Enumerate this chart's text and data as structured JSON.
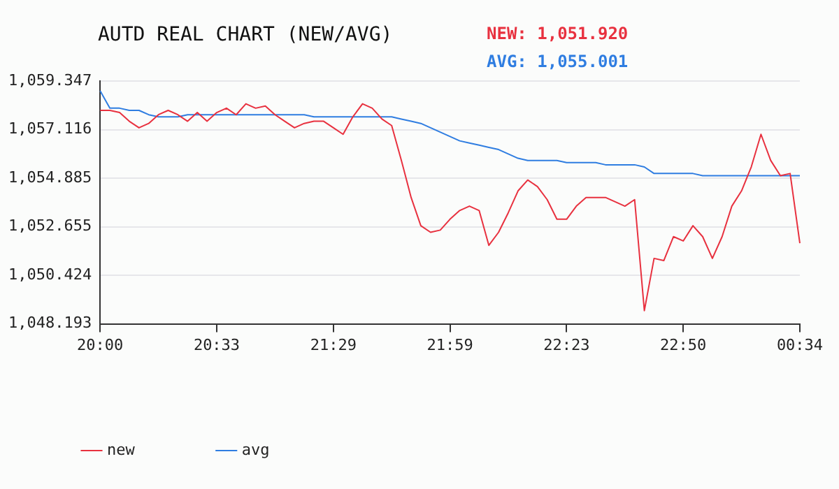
{
  "chart_data": {
    "type": "line",
    "title": "AUTD REAL CHART (NEW/AVG)",
    "annotations": [
      "NEW: 1,051.920",
      "AVG: 1,055.001"
    ],
    "categories": [
      "20:00",
      null,
      null,
      null,
      null,
      null,
      null,
      null,
      null,
      null,
      null,
      null,
      "20:33",
      null,
      null,
      null,
      null,
      null,
      null,
      null,
      null,
      null,
      null,
      null,
      "21:29",
      null,
      null,
      null,
      null,
      null,
      null,
      null,
      null,
      null,
      null,
      null,
      "21:59",
      null,
      null,
      null,
      null,
      null,
      null,
      null,
      null,
      null,
      null,
      null,
      "22:23",
      null,
      null,
      null,
      null,
      null,
      null,
      null,
      null,
      null,
      null,
      null,
      "22:50",
      null,
      null,
      null,
      null,
      null,
      null,
      null,
      null,
      null,
      null,
      null,
      "00:34"
    ],
    "series": [
      {
        "name": "new",
        "color": "#e8313f",
        "values": [
          1058.0,
          1058.0,
          1057.9,
          1057.5,
          1057.2,
          1057.4,
          1057.8,
          1058.0,
          1057.8,
          1057.5,
          1057.9,
          1057.5,
          1057.9,
          1058.1,
          1057.8,
          1058.3,
          1058.1,
          1058.2,
          1057.8,
          1057.5,
          1057.2,
          1057.4,
          1057.5,
          1057.5,
          1057.2,
          1056.9,
          1057.7,
          1058.3,
          1058.1,
          1057.6,
          1057.3,
          1055.7,
          1054.0,
          1052.7,
          1052.4,
          1052.5,
          1053.0,
          1053.4,
          1053.6,
          1053.4,
          1051.8,
          1052.4,
          1053.3,
          1054.3,
          1054.8,
          1054.5,
          1053.9,
          1053.0,
          1053.0,
          1053.6,
          1054.0,
          1054.0,
          1054.0,
          1053.8,
          1053.6,
          1053.9,
          1048.8,
          1051.2,
          1051.1,
          1052.2,
          1052.0,
          1052.7,
          1052.2,
          1051.2,
          1052.2,
          1053.6,
          1054.3,
          1055.4,
          1056.9,
          1055.7,
          1055.0,
          1055.1,
          1051.9
        ]
      },
      {
        "name": "avg",
        "color": "#2f7de1",
        "values": [
          1058.9,
          1058.1,
          1058.1,
          1058.0,
          1058.0,
          1057.8,
          1057.7,
          1057.7,
          1057.7,
          1057.8,
          1057.8,
          1057.8,
          1057.8,
          1057.8,
          1057.8,
          1057.8,
          1057.8,
          1057.8,
          1057.8,
          1057.8,
          1057.8,
          1057.8,
          1057.7,
          1057.7,
          1057.7,
          1057.7,
          1057.7,
          1057.7,
          1057.7,
          1057.7,
          1057.7,
          1057.6,
          1057.5,
          1057.4,
          1057.2,
          1057.0,
          1056.8,
          1056.6,
          1056.5,
          1056.4,
          1056.3,
          1056.2,
          1056.0,
          1055.8,
          1055.7,
          1055.7,
          1055.7,
          1055.7,
          1055.6,
          1055.6,
          1055.6,
          1055.6,
          1055.5,
          1055.5,
          1055.5,
          1055.5,
          1055.4,
          1055.1,
          1055.1,
          1055.1,
          1055.1,
          1055.1,
          1055.0,
          1055.0,
          1055.0,
          1055.0,
          1055.0,
          1055.0,
          1055.0,
          1055.0,
          1055.0,
          1055.0,
          1055.0
        ]
      }
    ],
    "ylim": [
      1048.193,
      1059.347
    ],
    "yticks": [
      {
        "value": 1048.193,
        "label": "1,048.193"
      },
      {
        "value": 1050.424,
        "label": "1,050.424"
      },
      {
        "value": 1052.655,
        "label": "1,052.655"
      },
      {
        "value": 1054.885,
        "label": "1,054.885"
      },
      {
        "value": 1057.116,
        "label": "1,057.116"
      },
      {
        "value": 1059.347,
        "label": "1,059.347"
      }
    ],
    "grid": "y",
    "legend": "bottom left",
    "marker": "none",
    "line_style": "solid"
  }
}
